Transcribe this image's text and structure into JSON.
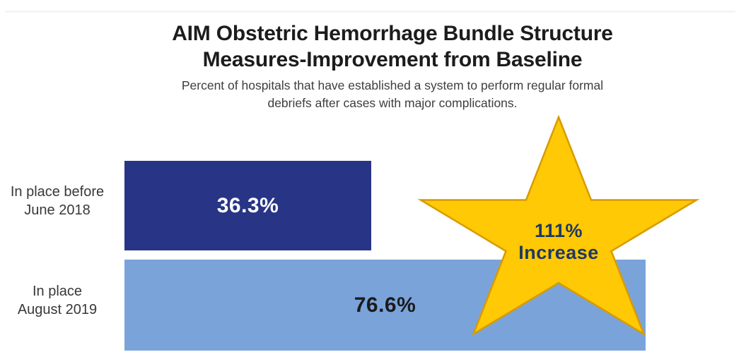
{
  "header": {
    "title_line1": "AIM Obstetric Hemorrhage Bundle Structure",
    "title_line2": "Measures-Improvement from Baseline",
    "subtitle_line1": "Percent of hospitals that have established a system to perform regular formal",
    "subtitle_line2": "debriefs after cases with major complications."
  },
  "chart_data": {
    "type": "bar",
    "orientation": "horizontal",
    "title": "AIM Obstetric Hemorrhage Bundle Structure Measures-Improvement from Baseline",
    "subtitle": "Percent of hospitals that have established a system to perform regular formal debriefs after cases with major complications.",
    "categories": [
      "In place before June 2018",
      "In place August 2019"
    ],
    "series": [
      {
        "name": "Percent of hospitals",
        "values": [
          36.3,
          76.6
        ]
      }
    ],
    "value_labels": [
      "36.3%",
      "76.6%"
    ],
    "bar_colors": [
      "#283586",
      "#7AA3DA"
    ],
    "value_label_colors": [
      "#ffffff",
      "#1b1b1b"
    ],
    "xlim": [
      0,
      100
    ],
    "grid": false,
    "legend": false,
    "annotation": {
      "text": "111% Increase",
      "shape": "star",
      "fill": "#FFC905",
      "outline": "#D79B00",
      "text_color": "#1F3864"
    }
  },
  "bars": [
    {
      "label_line1": "In place before",
      "label_line2": "June 2018",
      "value_label": "36.3%"
    },
    {
      "label_line1": "In place",
      "label_line2": "August 2019",
      "value_label": "76.6%"
    }
  ],
  "star": {
    "line1": "111%",
    "line2": "Increase"
  }
}
